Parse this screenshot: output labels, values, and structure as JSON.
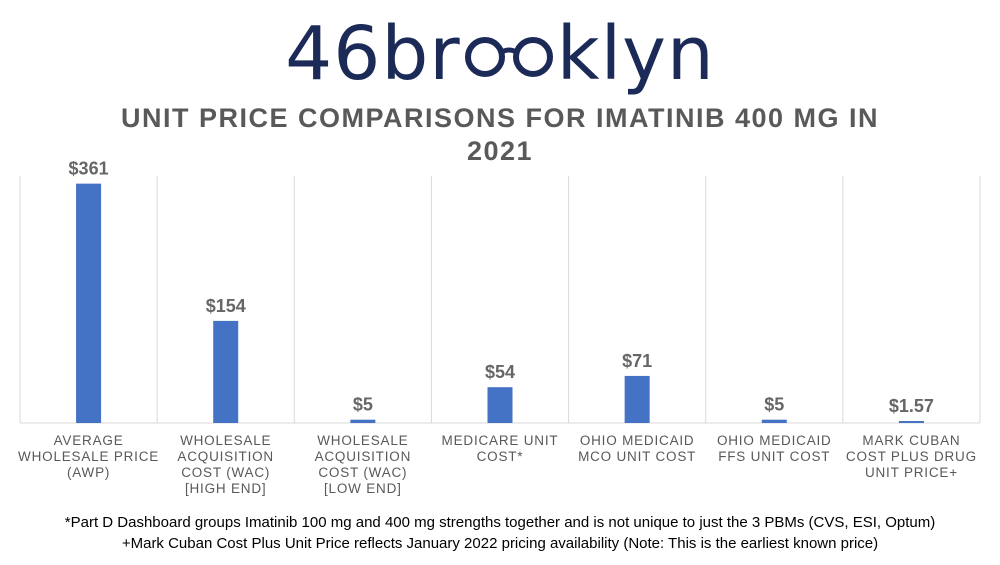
{
  "logo": {
    "text_prefix": "46br",
    "text_suffix": "klyn",
    "icon": "glasses-icon",
    "color": "#1b2a57"
  },
  "chart_data": {
    "type": "bar",
    "title": "UNIT PRICE COMPARISONS FOR IMATINIB 400 MG IN 2021",
    "categories": [
      [
        "AVERAGE",
        "WHOLESALE PRICE",
        "(AWP)"
      ],
      [
        "WHOLESALE",
        "ACQUISITION",
        "COST (WAC)",
        "[HIGH END]"
      ],
      [
        "WHOLESALE",
        "ACQUISITION",
        "COST (WAC)",
        "[LOW END]"
      ],
      [
        "MEDICARE UNIT",
        "COST*"
      ],
      [
        "OHIO MEDICAID",
        "MCO UNIT COST"
      ],
      [
        "OHIO MEDICAID",
        "FFS UNIT COST"
      ],
      [
        "MARK CUBAN",
        "COST PLUS DRUG",
        "UNIT PRICE+"
      ]
    ],
    "values": [
      361,
      154,
      5,
      54,
      71,
      5,
      1.57
    ],
    "value_labels": [
      "$361",
      "$154",
      "$5",
      "$54",
      "$71",
      "$5",
      "$1.57"
    ],
    "ylim": [
      0,
      400
    ],
    "bar_color": "#4472c4",
    "grid": "vertical separators"
  },
  "footnotes": [
    "*Part D Dashboard groups Imatinib 100 mg and 400 mg strengths together and is not unique to just the 3 PBMs (CVS, ESI, Optum)",
    "+Mark Cuban Cost Plus Unit Price reflects January 2022 pricing availability (Note: This is the earliest known price)"
  ]
}
